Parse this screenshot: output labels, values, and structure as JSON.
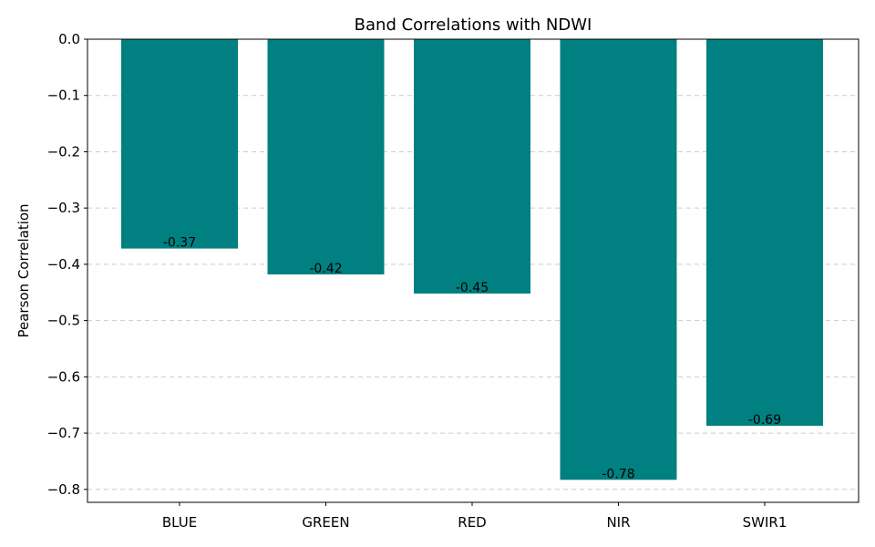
{
  "chart_data": {
    "type": "bar",
    "title": "Band Correlations with NDWI",
    "xlabel": "",
    "ylabel": "Pearson Correlation",
    "categories": [
      "BLUE",
      "GREEN",
      "RED",
      "NIR",
      "SWIR1"
    ],
    "values": [
      -0.372,
      -0.418,
      -0.452,
      -0.783,
      -0.687
    ],
    "data_labels": [
      "-0.37",
      "-0.42",
      "-0.45",
      "-0.78",
      "-0.69"
    ],
    "ylim": [
      -0.823,
      0.0
    ],
    "yticks": [
      0.0,
      -0.1,
      -0.2,
      -0.3,
      -0.4,
      -0.5,
      -0.6,
      -0.7,
      -0.8
    ],
    "ytick_labels": [
      "0.0",
      "−0.1",
      "−0.2",
      "−0.3",
      "−0.4",
      "−0.5",
      "−0.6",
      "−0.7",
      "−0.8"
    ],
    "grid": "y-dashed",
    "bar_color": "#008080",
    "grid_color": "#cccccc"
  }
}
